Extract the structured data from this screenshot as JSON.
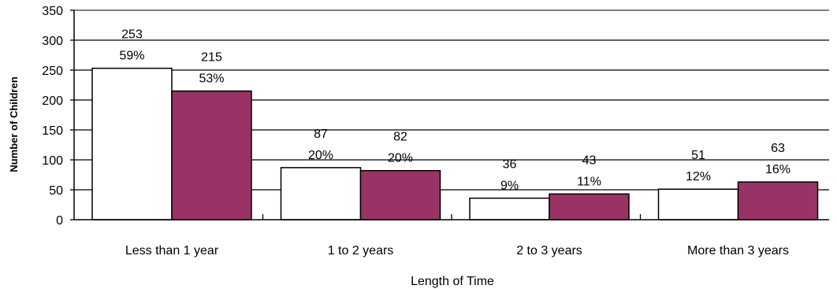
{
  "chart_data": {
    "type": "bar",
    "title": "",
    "xlabel": "Length of Time",
    "ylabel": "Number of Children",
    "ylim": [
      0,
      350
    ],
    "yticks": [
      0,
      50,
      100,
      150,
      200,
      250,
      300,
      350
    ],
    "grid": true,
    "legend": "none",
    "categories": [
      "Less than 1 year",
      "1 to 2 years",
      "2 to 3 years",
      "More than 3 years"
    ],
    "series": [
      {
        "color": "#ffffff",
        "values": [
          253,
          87,
          36,
          51
        ],
        "percent_labels": [
          "59%",
          "20%",
          "9%",
          "12%"
        ]
      },
      {
        "color": "#993366",
        "values": [
          215,
          82,
          43,
          63
        ],
        "percent_labels": [
          "53%",
          "20%",
          "11%",
          "16%"
        ]
      }
    ]
  }
}
